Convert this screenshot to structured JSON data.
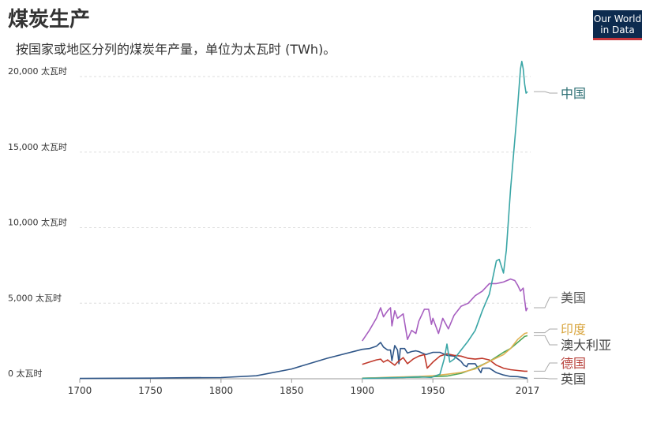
{
  "header": {
    "title": "煤炭生产",
    "subtitle": "按国家或地区分列的煤炭年产量，单位为太瓦时 (TWh)。",
    "logo_line1": "Our World",
    "logo_line2": "in Data"
  },
  "chart_data": {
    "type": "line",
    "title": "煤炭生产",
    "subtitle": "按国家或地区分列的煤炭年产量，单位为太瓦时 (TWh)。",
    "xlim": [
      1700,
      2017
    ],
    "ylim": [
      0,
      20000
    ],
    "x_ticks": [
      1700,
      1750,
      1800,
      1850,
      1900,
      1950,
      2017
    ],
    "x_tick_labels": [
      "1700",
      "1750",
      "1800",
      "1850",
      "1900",
      "1950",
      "2017"
    ],
    "y_ticks": [
      0,
      5000,
      10000,
      15000,
      20000
    ],
    "y_tick_labels": [
      "0 太瓦时",
      "5,000 太瓦时",
      "10,000 太瓦时",
      "15,000 太瓦时",
      "20,000 太瓦时"
    ],
    "grid": "horizontal dashed",
    "series": [
      {
        "name": "中国",
        "color": "#3aa6a6",
        "label_color": "#2c6e73",
        "points": [
          [
            1900,
            20
          ],
          [
            1910,
            40
          ],
          [
            1920,
            70
          ],
          [
            1930,
            90
          ],
          [
            1940,
            130
          ],
          [
            1949,
            90
          ],
          [
            1955,
            300
          ],
          [
            1958,
            1300
          ],
          [
            1960,
            2300
          ],
          [
            1962,
            1100
          ],
          [
            1965,
            1300
          ],
          [
            1970,
            1900
          ],
          [
            1975,
            2500
          ],
          [
            1980,
            3200
          ],
          [
            1985,
            4500
          ],
          [
            1990,
            5600
          ],
          [
            1995,
            7800
          ],
          [
            1997,
            7900
          ],
          [
            2000,
            7000
          ],
          [
            2002,
            8500
          ],
          [
            2005,
            12500
          ],
          [
            2008,
            15800
          ],
          [
            2010,
            18000
          ],
          [
            2012,
            20500
          ],
          [
            2013,
            21000
          ],
          [
            2014,
            20500
          ],
          [
            2015,
            19500
          ],
          [
            2016,
            18900
          ],
          [
            2017,
            19000
          ]
        ]
      },
      {
        "name": "美国",
        "color": "#a75fc0",
        "label_color": "#555555",
        "points": [
          [
            1900,
            2500
          ],
          [
            1905,
            3200
          ],
          [
            1910,
            4000
          ],
          [
            1913,
            4700
          ],
          [
            1915,
            4100
          ],
          [
            1918,
            4500
          ],
          [
            1920,
            4700
          ],
          [
            1921,
            3500
          ],
          [
            1923,
            4500
          ],
          [
            1925,
            4000
          ],
          [
            1929,
            4300
          ],
          [
            1932,
            2600
          ],
          [
            1935,
            3200
          ],
          [
            1938,
            3000
          ],
          [
            1940,
            3800
          ],
          [
            1944,
            4600
          ],
          [
            1947,
            4600
          ],
          [
            1949,
            3600
          ],
          [
            1950,
            4000
          ],
          [
            1954,
            3000
          ],
          [
            1957,
            4000
          ],
          [
            1961,
            3300
          ],
          [
            1965,
            4200
          ],
          [
            1970,
            4800
          ],
          [
            1975,
            5000
          ],
          [
            1980,
            5500
          ],
          [
            1985,
            5800
          ],
          [
            1990,
            6300
          ],
          [
            1995,
            6300
          ],
          [
            2000,
            6400
          ],
          [
            2005,
            6600
          ],
          [
            2008,
            6500
          ],
          [
            2010,
            6200
          ],
          [
            2012,
            5800
          ],
          [
            2014,
            6000
          ],
          [
            2015,
            5200
          ],
          [
            2016,
            4500
          ],
          [
            2017,
            4700
          ]
        ]
      },
      {
        "name": "印度",
        "color": "#e0b253",
        "label_color": "#d9a640",
        "points": [
          [
            1900,
            30
          ],
          [
            1920,
            100
          ],
          [
            1940,
            150
          ],
          [
            1950,
            200
          ],
          [
            1960,
            300
          ],
          [
            1970,
            420
          ],
          [
            1980,
            650
          ],
          [
            1990,
            1150
          ],
          [
            2000,
            1600
          ],
          [
            2005,
            2000
          ],
          [
            2010,
            2600
          ],
          [
            2015,
            3000
          ],
          [
            2017,
            3050
          ]
        ]
      },
      {
        "name": "澳大利亚",
        "color": "#4fa656",
        "label_color": "#444444",
        "points": [
          [
            1900,
            40
          ],
          [
            1920,
            80
          ],
          [
            1940,
            100
          ],
          [
            1950,
            140
          ],
          [
            1960,
            180
          ],
          [
            1970,
            360
          ],
          [
            1980,
            700
          ],
          [
            1990,
            1150
          ],
          [
            2000,
            1750
          ],
          [
            2005,
            2000
          ],
          [
            2010,
            2400
          ],
          [
            2015,
            2800
          ],
          [
            2017,
            2850
          ]
        ]
      },
      {
        "name": "德国",
        "color": "#c0392b",
        "label_color": "#b7413b",
        "points": [
          [
            1900,
            950
          ],
          [
            1905,
            1100
          ],
          [
            1910,
            1250
          ],
          [
            1913,
            1300
          ],
          [
            1915,
            1100
          ],
          [
            1918,
            1250
          ],
          [
            1920,
            1100
          ],
          [
            1923,
            900
          ],
          [
            1925,
            1100
          ],
          [
            1929,
            1400
          ],
          [
            1932,
            1000
          ],
          [
            1936,
            1300
          ],
          [
            1940,
            1500
          ],
          [
            1944,
            1600
          ],
          [
            1946,
            700
          ],
          [
            1950,
            1100
          ],
          [
            1955,
            1500
          ],
          [
            1960,
            1650
          ],
          [
            1965,
            1550
          ],
          [
            1970,
            1500
          ],
          [
            1975,
            1350
          ],
          [
            1980,
            1300
          ],
          [
            1985,
            1350
          ],
          [
            1990,
            1250
          ],
          [
            1995,
            900
          ],
          [
            2000,
            700
          ],
          [
            2005,
            600
          ],
          [
            2010,
            550
          ],
          [
            2015,
            500
          ],
          [
            2017,
            500
          ]
        ]
      },
      {
        "name": "英国",
        "color": "#2f5688",
        "label_color": "#444444",
        "points": [
          [
            1700,
            20
          ],
          [
            1750,
            40
          ],
          [
            1775,
            70
          ],
          [
            1800,
            80
          ],
          [
            1825,
            200
          ],
          [
            1850,
            650
          ],
          [
            1875,
            1350
          ],
          [
            1900,
            1950
          ],
          [
            1905,
            2000
          ],
          [
            1910,
            2150
          ],
          [
            1913,
            2400
          ],
          [
            1915,
            2100
          ],
          [
            1918,
            1900
          ],
          [
            1920,
            1900
          ],
          [
            1921,
            1200
          ],
          [
            1923,
            2200
          ],
          [
            1925,
            1900
          ],
          [
            1926,
            1000
          ],
          [
            1927,
            2000
          ],
          [
            1930,
            2000
          ],
          [
            1932,
            1700
          ],
          [
            1935,
            1800
          ],
          [
            1938,
            1850
          ],
          [
            1940,
            1800
          ],
          [
            1945,
            1600
          ],
          [
            1950,
            1750
          ],
          [
            1955,
            1750
          ],
          [
            1960,
            1550
          ],
          [
            1965,
            1500
          ],
          [
            1970,
            1150
          ],
          [
            1972,
            900
          ],
          [
            1974,
            800
          ],
          [
            1975,
            1000
          ],
          [
            1980,
            1000
          ],
          [
            1984,
            400
          ],
          [
            1985,
            700
          ],
          [
            1990,
            700
          ],
          [
            1995,
            400
          ],
          [
            2000,
            250
          ],
          [
            2005,
            150
          ],
          [
            2010,
            140
          ],
          [
            2015,
            70
          ],
          [
            2017,
            30
          ]
        ]
      }
    ]
  }
}
